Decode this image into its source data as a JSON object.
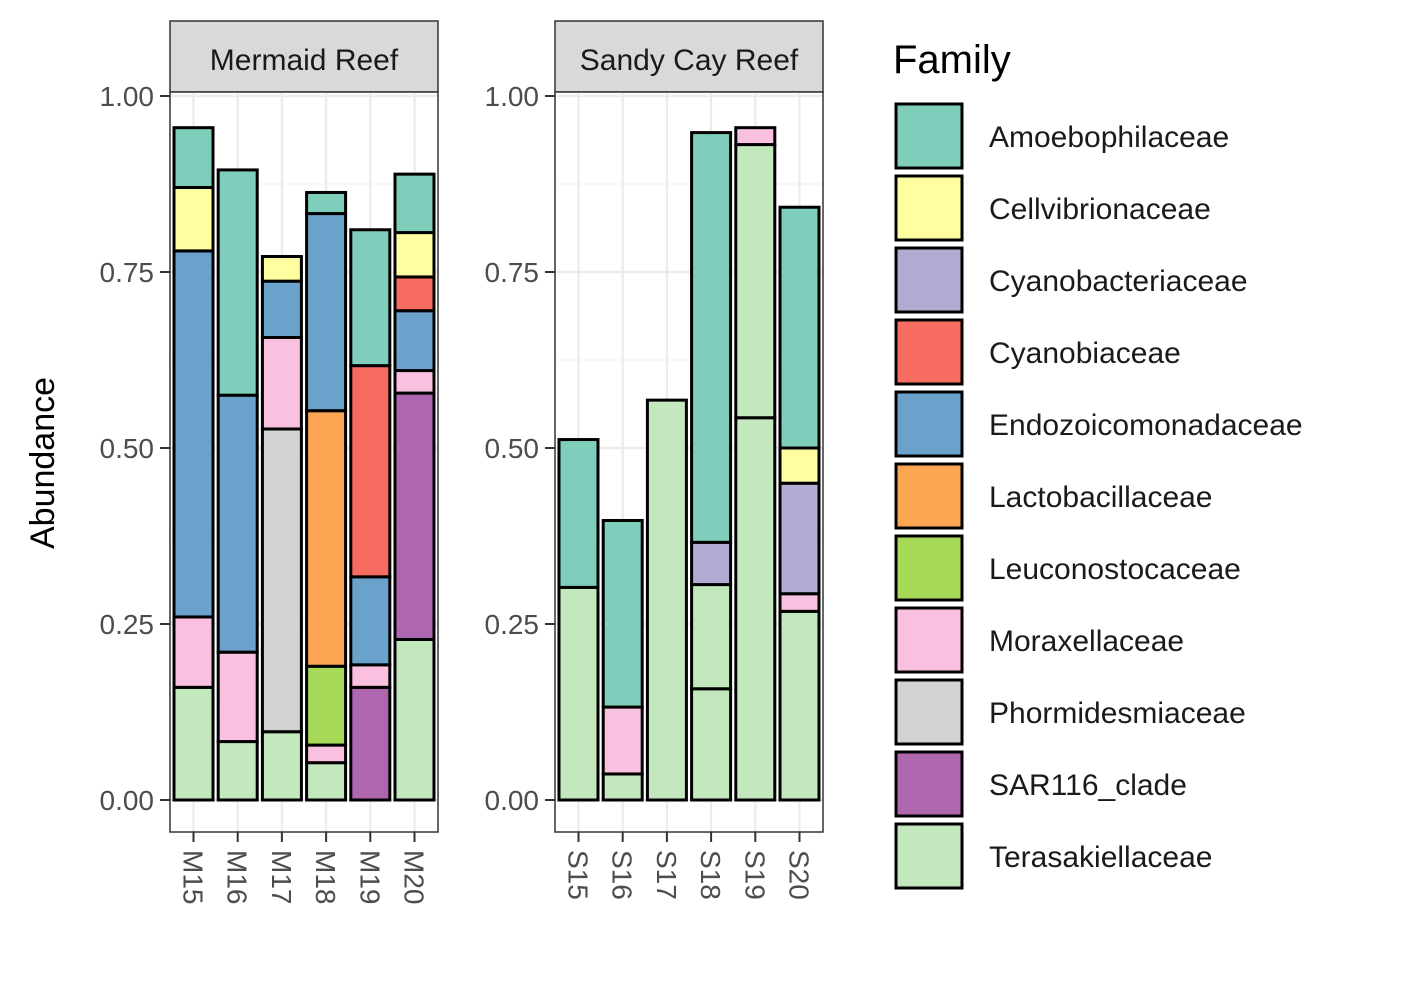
{
  "chart_data": {
    "type": "bar",
    "stacked": true,
    "ylabel": "Abundance",
    "ylim": [
      0,
      1
    ],
    "yticks": [
      "0.00",
      "0.25",
      "0.50",
      "0.75",
      "1.00"
    ],
    "grid": true,
    "legend": {
      "title": "Family",
      "position": "right",
      "entries": [
        {
          "name": "Amoebophilaceae",
          "color": "#7FCDBB"
        },
        {
          "name": "Cellvibrionaceae",
          "color": "#FFFFA0"
        },
        {
          "name": "Cyanobacteriaceae",
          "color": "#B2ABD2"
        },
        {
          "name": "Cyanobiaceae",
          "color": "#F76B61"
        },
        {
          "name": "Endozoicomonadaceae",
          "color": "#6BA2CB"
        },
        {
          "name": "Lactobacillaceae",
          "color": "#FBA553"
        },
        {
          "name": "Leuconostocaceae",
          "color": "#A6D957"
        },
        {
          "name": "Moraxellaceae",
          "color": "#F9C0DF"
        },
        {
          "name": "Phormidesmiaceae",
          "color": "#D3D3D3"
        },
        {
          "name": "SAR116_clade",
          "color": "#AE67AF"
        },
        {
          "name": "Terasakiellaceae",
          "color": "#C4E8BE"
        }
      ]
    },
    "panels": [
      {
        "title": "Mermaid Reef",
        "samples": [
          {
            "sample": "M15",
            "segments": [
              {
                "family": "Terasakiellaceae",
                "value": 0.16
              },
              {
                "family": "Moraxellaceae",
                "value": 0.1
              },
              {
                "family": "Endozoicomonadaceae",
                "value": 0.52
              },
              {
                "family": "Cellvibrionaceae",
                "value": 0.09
              },
              {
                "family": "Amoebophilaceae",
                "value": 0.085
              }
            ]
          },
          {
            "sample": "M16",
            "segments": [
              {
                "family": "Terasakiellaceae",
                "value": 0.083
              },
              {
                "family": "Moraxellaceae",
                "value": 0.127
              },
              {
                "family": "Endozoicomonadaceae",
                "value": 0.365
              },
              {
                "family": "Amoebophilaceae",
                "value": 0.32
              }
            ]
          },
          {
            "sample": "M17",
            "segments": [
              {
                "family": "Terasakiellaceae",
                "value": 0.097
              },
              {
                "family": "Phormidesmiaceae",
                "value": 0.43
              },
              {
                "family": "Moraxellaceae",
                "value": 0.13
              },
              {
                "family": "Endozoicomonadaceae",
                "value": 0.08
              },
              {
                "family": "Cellvibrionaceae",
                "value": 0.035
              }
            ]
          },
          {
            "sample": "M18",
            "segments": [
              {
                "family": "Terasakiellaceae",
                "value": 0.053
              },
              {
                "family": "Moraxellaceae",
                "value": 0.025
              },
              {
                "family": "Leuconostocaceae",
                "value": 0.112
              },
              {
                "family": "Lactobacillaceae",
                "value": 0.363
              },
              {
                "family": "Endozoicomonadaceae",
                "value": 0.28
              },
              {
                "family": "Amoebophilaceae",
                "value": 0.03
              }
            ]
          },
          {
            "sample": "M19",
            "segments": [
              {
                "family": "SAR116_clade",
                "value": 0.16
              },
              {
                "family": "Moraxellaceae",
                "value": 0.032
              },
              {
                "family": "Endozoicomonadaceae",
                "value": 0.125
              },
              {
                "family": "Cyanobiaceae",
                "value": 0.3
              },
              {
                "family": "Amoebophilaceae",
                "value": 0.193
              }
            ]
          },
          {
            "sample": "M20",
            "segments": [
              {
                "family": "Terasakiellaceae",
                "value": 0.228
              },
              {
                "family": "SAR116_clade",
                "value": 0.35
              },
              {
                "family": "Moraxellaceae",
                "value": 0.032
              },
              {
                "family": "Endozoicomonadaceae",
                "value": 0.085
              },
              {
                "family": "Cyanobiaceae",
                "value": 0.048
              },
              {
                "family": "Cellvibrionaceae",
                "value": 0.063
              },
              {
                "family": "Amoebophilaceae",
                "value": 0.083
              }
            ]
          }
        ]
      },
      {
        "title": "Sandy Cay Reef",
        "samples": [
          {
            "sample": "S15",
            "segments": [
              {
                "family": "Terasakiellaceae",
                "value": 0.302
              },
              {
                "family": "Amoebophilaceae",
                "value": 0.21
              }
            ]
          },
          {
            "sample": "S16",
            "segments": [
              {
                "family": "Terasakiellaceae",
                "value": 0.037
              },
              {
                "family": "Moraxellaceae",
                "value": 0.095
              },
              {
                "family": "Amoebophilaceae",
                "value": 0.265
              }
            ]
          },
          {
            "sample": "S17",
            "segments": [
              {
                "family": "Terasakiellaceae",
                "value": 0.568
              }
            ]
          },
          {
            "sample": "S18",
            "segments": [
              {
                "family": "Terasakiellaceae",
                "value": 0.158
              },
              {
                "family": "Terasakiellaceae",
                "value": 0.148
              },
              {
                "family": "Cyanobacteriaceae",
                "value": 0.06
              },
              {
                "family": "Amoebophilaceae",
                "value": 0.582
              }
            ]
          },
          {
            "sample": "S19",
            "segments": [
              {
                "family": "Terasakiellaceae",
                "value": 0.543
              },
              {
                "family": "Terasakiellaceae",
                "value": 0.388
              },
              {
                "family": "Moraxellaceae",
                "value": 0.024
              }
            ]
          },
          {
            "sample": "S20",
            "segments": [
              {
                "family": "Terasakiellaceae",
                "value": 0.268
              },
              {
                "family": "Moraxellaceae",
                "value": 0.025
              },
              {
                "family": "Cyanobacteriaceae",
                "value": 0.157
              },
              {
                "family": "Cellvibrionaceae",
                "value": 0.05
              },
              {
                "family": "Amoebophilaceae",
                "value": 0.342
              }
            ]
          }
        ]
      }
    ]
  }
}
